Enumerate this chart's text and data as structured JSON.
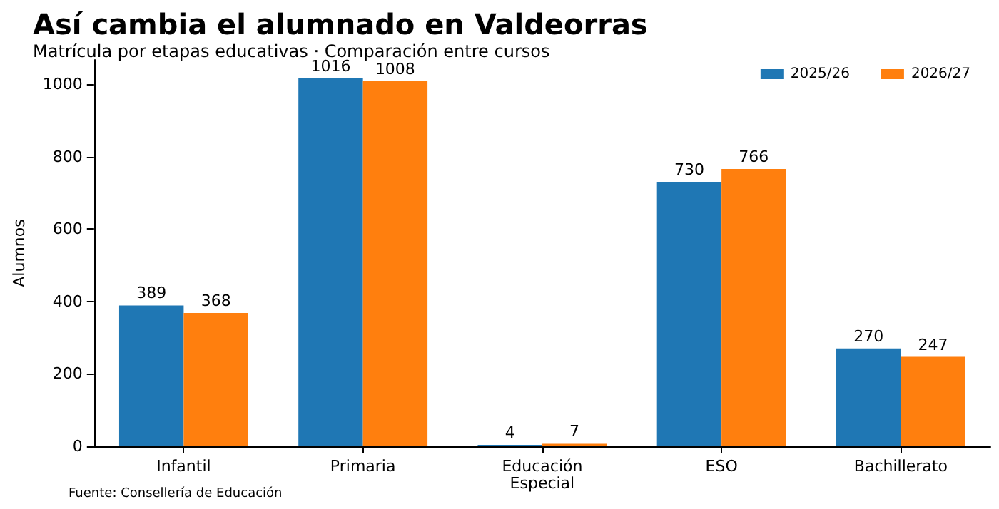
{
  "chart_data": {
    "type": "bar",
    "title": "Así cambia el alumnado en Valdeorras",
    "subtitle": "Matrícula por etapas educativas · Comparación entre cursos",
    "ylabel": "Alumnos",
    "annotations": [
      "Fuente: Consellería de Educación"
    ],
    "categories": [
      "Infantil",
      "Primaria",
      "Educación\nEspecial",
      "ESO",
      "Bachillerato"
    ],
    "series": [
      {
        "name": "2025/26",
        "color": "#1f77b4",
        "values": [
          389,
          1016,
          4,
          730,
          270
        ]
      },
      {
        "name": "2026/27",
        "color": "#ff7f0e",
        "values": [
          368,
          1008,
          7,
          766,
          247
        ]
      }
    ],
    "ylim": [
      0,
      1067
    ],
    "yticks": [
      0,
      200,
      400,
      600,
      800,
      1000
    ],
    "data_labels": true,
    "grid": false,
    "legend": "top right"
  }
}
